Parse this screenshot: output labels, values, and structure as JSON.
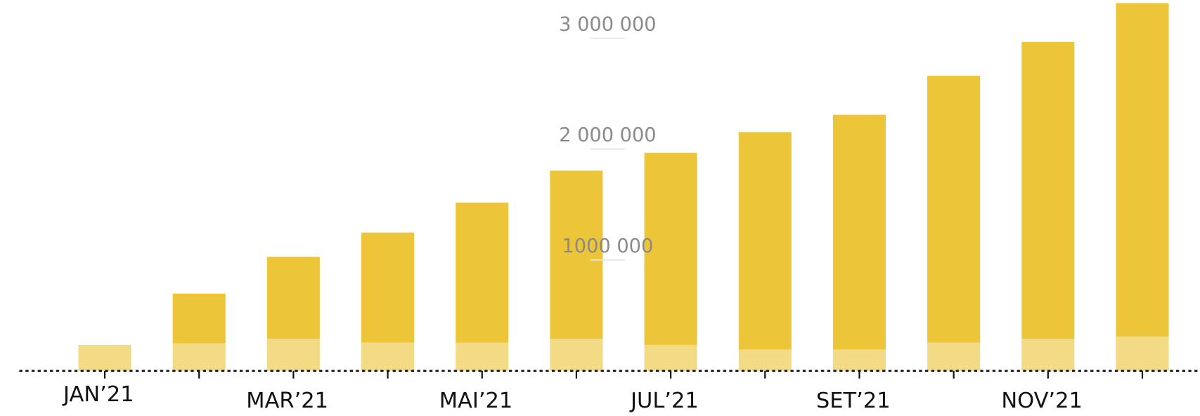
{
  "chart_data": {
    "type": "stacked-bar",
    "categories": [
      "JAN’21",
      null,
      "MAR’21",
      null,
      "MAI’21",
      null,
      "JUL’21",
      null,
      "SET’21",
      null,
      "NOV’21",
      null
    ],
    "series": [
      {
        "color": "#f3da84",
        "values": [
          234000,
          248000,
          290000,
          255000,
          255000,
          290000,
          234000,
          193000,
          193000,
          255000,
          290000,
          310000
        ]
      },
      {
        "color": "#ecc538",
        "values": [
          0,
          449000,
          738000,
          993000,
          1262000,
          1517000,
          1732000,
          1959000,
          2117000,
          2407000,
          2676000,
          3007000
        ]
      }
    ],
    "ylim": [
      0,
      3345000
    ],
    "yticks": [
      {
        "value": 1000000,
        "label": "1000 000"
      },
      {
        "value": 2000000,
        "label": "2 000 000"
      },
      {
        "value": 3000000,
        "label": "3 000 000"
      }
    ]
  }
}
